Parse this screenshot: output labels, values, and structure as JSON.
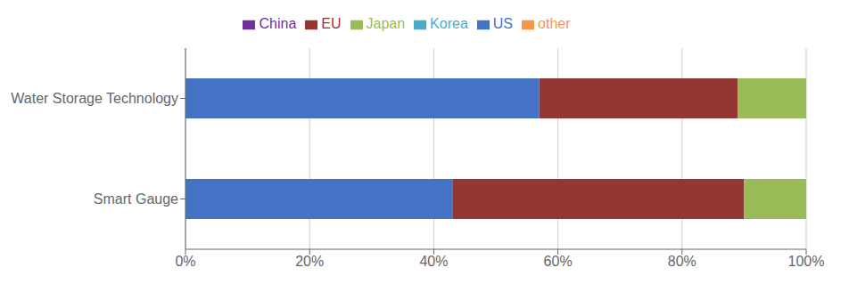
{
  "chart_data": {
    "type": "bar",
    "orientation": "horizontal",
    "stacked": true,
    "categories": [
      "Water Storage Technology",
      "Smart Gauge"
    ],
    "series": [
      {
        "name": "US",
        "color": "#4472C4",
        "values": [
          57,
          43
        ]
      },
      {
        "name": "EU",
        "color": "#943634",
        "values": [
          32,
          47
        ]
      },
      {
        "name": "Japan",
        "color": "#9BBB59",
        "values": [
          11,
          10
        ]
      },
      {
        "name": "China",
        "color": "#7030A0",
        "values": [
          0,
          0
        ]
      },
      {
        "name": "Korea",
        "color": "#4BACC6",
        "values": [
          0,
          0
        ]
      },
      {
        "name": "other",
        "color": "#F79646",
        "values": [
          0,
          0
        ]
      }
    ],
    "xlim": [
      0,
      100
    ],
    "xticks": [
      {
        "value": 0,
        "label": "0%"
      },
      {
        "value": 20,
        "label": "20%"
      },
      {
        "value": 40,
        "label": "40%"
      },
      {
        "value": 60,
        "label": "60%"
      },
      {
        "value": 80,
        "label": "80%"
      },
      {
        "value": 100,
        "label": "100%"
      }
    ],
    "grid": true,
    "legend": "top"
  }
}
